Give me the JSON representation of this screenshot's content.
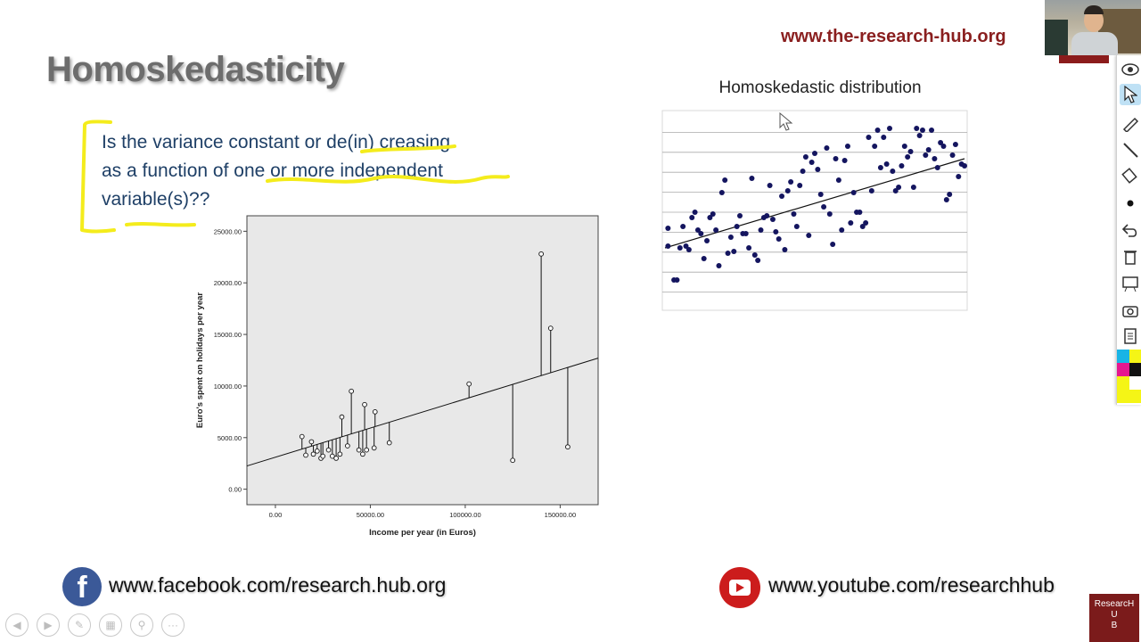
{
  "slide": {
    "title": "Homoskedasticity",
    "website": "www.the-research-hub.org",
    "question_lines": [
      "Is the variance constant or de(in) creasing",
      "as a function of one or more independent",
      "variable(s)??"
    ]
  },
  "footer": {
    "facebook_text": "www.facebook.com/research.hub.org",
    "facebook_icon": "f",
    "youtube_text": "www.youtube.com/researchhub"
  },
  "logo": {
    "line1": "ResearcH",
    "line2": "U",
    "line3": "B"
  },
  "toolbar": {
    "items": [
      "eye-icon",
      "pointer-icon",
      "pen-icon",
      "line-icon",
      "eraser-icon",
      "dot-icon",
      "undo-icon",
      "trash-icon",
      "whiteboard-icon",
      "camera-icon",
      "clipboard-icon"
    ]
  },
  "nav": {
    "items": [
      "back-icon",
      "forward-icon",
      "pen-icon",
      "slides-icon",
      "zoom-icon",
      "more-icon"
    ]
  },
  "colors": {
    "accent": "#8a1f1f",
    "highlight": "#f4ec1c",
    "text_blue": "#1e3f66",
    "point_blue": "#14155f"
  },
  "chart_data": [
    {
      "type": "scatter",
      "title": "",
      "xlabel": "Income per year (in Euros)",
      "ylabel": "Euro's spent on holidays per year",
      "xlim": [
        -15000,
        170000
      ],
      "ylim": [
        -1500,
        26500
      ],
      "xticks": [
        "0.00",
        "50000.00",
        "100000.00",
        "150000.00"
      ],
      "xtick_values": [
        0,
        50000,
        100000,
        150000
      ],
      "yticks": [
        "0.00",
        "5000.00",
        "10000.00",
        "15000.00",
        "20000.00",
        "25000.00"
      ],
      "ytick_values": [
        0,
        5000,
        10000,
        15000,
        20000,
        25000
      ],
      "regression": {
        "intercept": 3100,
        "slope": 0.0565
      },
      "points": [
        [
          14000,
          5100
        ],
        [
          16000,
          3300
        ],
        [
          19000,
          4600
        ],
        [
          20000,
          3400
        ],
        [
          22000,
          3700
        ],
        [
          24000,
          3000
        ],
        [
          25000,
          3200
        ],
        [
          28000,
          3800
        ],
        [
          30000,
          3200
        ],
        [
          32000,
          3000
        ],
        [
          34000,
          3400
        ],
        [
          35000,
          7000
        ],
        [
          38000,
          4200
        ],
        [
          40000,
          9500
        ],
        [
          44000,
          3800
        ],
        [
          46000,
          3400
        ],
        [
          47000,
          8200
        ],
        [
          48000,
          3800
        ],
        [
          52000,
          4000
        ],
        [
          52500,
          7500
        ],
        [
          60000,
          4500
        ],
        [
          102000,
          10200
        ],
        [
          125000,
          2800
        ],
        [
          140000,
          22800
        ],
        [
          145000,
          15600
        ],
        [
          154000,
          4100
        ]
      ]
    },
    {
      "type": "scatter",
      "title": "Homoskedastic distribution",
      "xlabel": "",
      "ylabel": "",
      "xlim": [
        0,
        100
      ],
      "ylim": [
        0,
        100
      ],
      "grid": true,
      "regression": {
        "intercept": 28,
        "slope": 0.5
      },
      "points": [
        [
          1,
          39
        ],
        [
          1,
          29
        ],
        [
          3,
          10
        ],
        [
          4,
          10
        ],
        [
          5,
          28
        ],
        [
          6,
          40
        ],
        [
          7,
          29
        ],
        [
          8,
          27
        ],
        [
          9,
          45
        ],
        [
          10,
          48
        ],
        [
          11,
          38
        ],
        [
          12,
          36
        ],
        [
          13,
          22
        ],
        [
          14,
          32
        ],
        [
          15,
          45
        ],
        [
          16,
          47
        ],
        [
          17,
          38
        ],
        [
          18,
          18
        ],
        [
          19,
          59
        ],
        [
          20,
          66
        ],
        [
          21,
          25
        ],
        [
          22,
          34
        ],
        [
          23,
          26
        ],
        [
          24,
          40
        ],
        [
          25,
          46
        ],
        [
          26,
          36
        ],
        [
          27,
          36
        ],
        [
          28,
          28
        ],
        [
          29,
          67
        ],
        [
          30,
          24
        ],
        [
          31,
          21
        ],
        [
          32,
          38
        ],
        [
          33,
          45
        ],
        [
          34,
          46
        ],
        [
          35,
          63
        ],
        [
          36,
          44
        ],
        [
          37,
          37
        ],
        [
          38,
          33
        ],
        [
          39,
          57
        ],
        [
          40,
          27
        ],
        [
          41,
          60
        ],
        [
          42,
          65
        ],
        [
          43,
          47
        ],
        [
          44,
          40
        ],
        [
          45,
          63
        ],
        [
          46,
          71
        ],
        [
          47,
          79
        ],
        [
          48,
          35
        ],
        [
          49,
          76
        ],
        [
          50,
          81
        ],
        [
          51,
          72
        ],
        [
          52,
          58
        ],
        [
          53,
          51
        ],
        [
          54,
          84
        ],
        [
          55,
          47
        ],
        [
          56,
          30
        ],
        [
          57,
          78
        ],
        [
          58,
          66
        ],
        [
          59,
          38
        ],
        [
          60,
          77
        ],
        [
          61,
          85
        ],
        [
          62,
          42
        ],
        [
          63,
          59
        ],
        [
          64,
          48
        ],
        [
          65,
          48
        ],
        [
          66,
          40
        ],
        [
          67,
          42
        ],
        [
          68,
          90
        ],
        [
          69,
          60
        ],
        [
          70,
          85
        ],
        [
          71,
          94
        ],
        [
          72,
          73
        ],
        [
          73,
          90
        ],
        [
          74,
          75
        ],
        [
          75,
          95
        ],
        [
          76,
          71
        ],
        [
          77,
          60
        ],
        [
          78,
          62
        ],
        [
          79,
          74
        ],
        [
          80,
          85
        ],
        [
          81,
          79
        ],
        [
          82,
          82
        ],
        [
          83,
          62
        ],
        [
          84,
          95
        ],
        [
          85,
          91
        ],
        [
          86,
          94
        ],
        [
          87,
          80
        ],
        [
          88,
          83
        ],
        [
          89,
          94
        ],
        [
          90,
          78
        ],
        [
          91,
          73
        ],
        [
          92,
          87
        ],
        [
          93,
          85
        ],
        [
          94,
          55
        ],
        [
          95,
          58
        ],
        [
          96,
          80
        ],
        [
          97,
          86
        ],
        [
          98,
          68
        ],
        [
          99,
          75
        ],
        [
          100,
          74
        ]
      ]
    }
  ]
}
